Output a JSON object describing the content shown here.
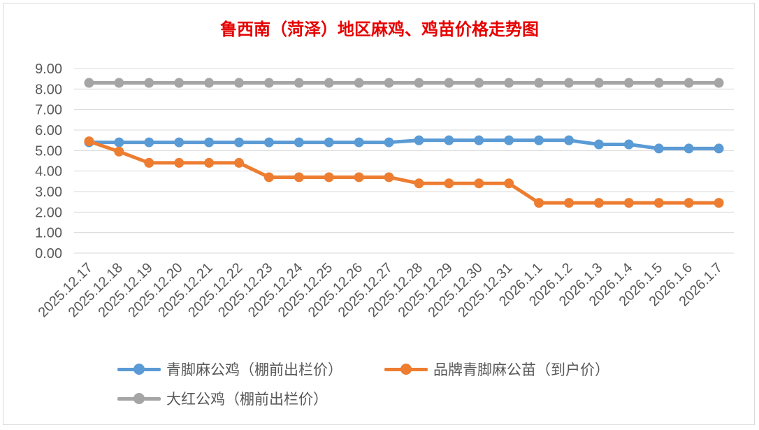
{
  "chart_data": {
    "type": "line",
    "title": "鲁西南（菏泽）地区麻鸡、鸡苗价格走势图",
    "xlabel": "",
    "ylabel": "",
    "ylim": [
      0,
      9
    ],
    "y_ticks": [
      "0.00",
      "1.00",
      "2.00",
      "3.00",
      "4.00",
      "5.00",
      "6.00",
      "7.00",
      "8.00",
      "9.00"
    ],
    "grid": true,
    "legend_position": "bottom",
    "categories": [
      "2025.12.17",
      "2025.12.18",
      "2025.12.19",
      "2025.12.20",
      "2025.12.21",
      "2025.12.22",
      "2025.12.23",
      "2025.12.24",
      "2025.12.25",
      "2025.12.26",
      "2025.12.27",
      "2025.12.28",
      "2025.12.29",
      "2025.12.30",
      "2025.12.31",
      "2026.1.1",
      "2026.1.2",
      "2026.1.3",
      "2026.1.4",
      "2026.1.5",
      "2026.1.6",
      "2026.1.7"
    ],
    "series": [
      {
        "name": "青脚麻公鸡（棚前出栏价）",
        "color": "#5b9bd5",
        "values": [
          5.4,
          5.4,
          5.4,
          5.4,
          5.4,
          5.4,
          5.4,
          5.4,
          5.4,
          5.4,
          5.4,
          5.5,
          5.5,
          5.5,
          5.5,
          5.5,
          5.5,
          5.3,
          5.3,
          5.1,
          5.1,
          5.1
        ]
      },
      {
        "name": "品牌青脚麻公苗（到户价）",
        "color": "#ed7d31",
        "values": [
          5.45,
          4.95,
          4.4,
          4.4,
          4.4,
          4.4,
          3.7,
          3.7,
          3.7,
          3.7,
          3.7,
          3.4,
          3.4,
          3.4,
          3.4,
          2.45,
          2.45,
          2.45,
          2.45,
          2.45,
          2.45,
          2.45
        ]
      },
      {
        "name": "大红公鸡（棚前出栏价）",
        "color": "#a5a5a5",
        "values": [
          8.3,
          8.3,
          8.3,
          8.3,
          8.3,
          8.3,
          8.3,
          8.3,
          8.3,
          8.3,
          8.3,
          8.3,
          8.3,
          8.3,
          8.3,
          8.3,
          8.3,
          8.3,
          8.3,
          8.3,
          8.3,
          8.3
        ]
      }
    ]
  }
}
